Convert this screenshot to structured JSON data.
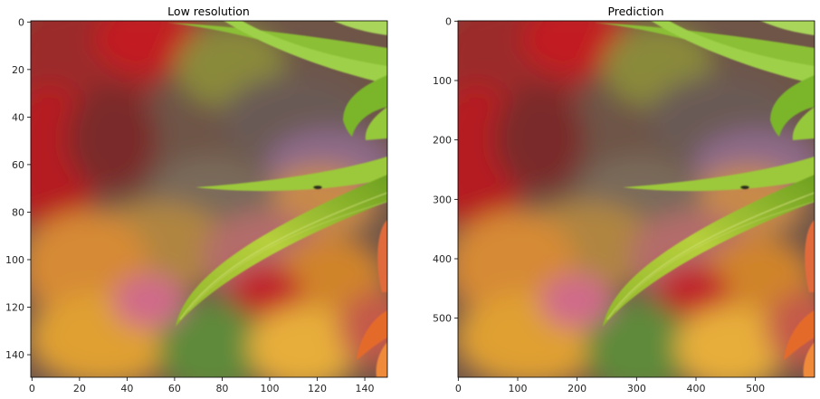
{
  "panels": [
    {
      "id": "low-res",
      "title": "Low resolution",
      "x_ticks": [
        "0",
        "20",
        "40",
        "60",
        "80",
        "100",
        "120",
        "140"
      ],
      "x_tick_values": [
        0,
        20,
        40,
        60,
        80,
        100,
        120,
        140
      ],
      "y_ticks": [
        "0",
        "20",
        "40",
        "60",
        "80",
        "100",
        "120",
        "140"
      ],
      "y_tick_values": [
        0,
        20,
        40,
        60,
        80,
        100,
        120,
        140
      ],
      "extent": 150,
      "image": "blurred flower garden with green lily leaves"
    },
    {
      "id": "prediction",
      "title": "Prediction",
      "x_ticks": [
        "0",
        "100",
        "200",
        "300",
        "400",
        "500"
      ],
      "x_tick_values": [
        0,
        100,
        200,
        300,
        400,
        500
      ],
      "y_ticks": [
        "0",
        "100",
        "200",
        "300",
        "400",
        "500"
      ],
      "y_tick_values": [
        0,
        100,
        200,
        300,
        400,
        500
      ],
      "extent": 600,
      "image": "blurred flower garden with green lily leaves"
    }
  ]
}
